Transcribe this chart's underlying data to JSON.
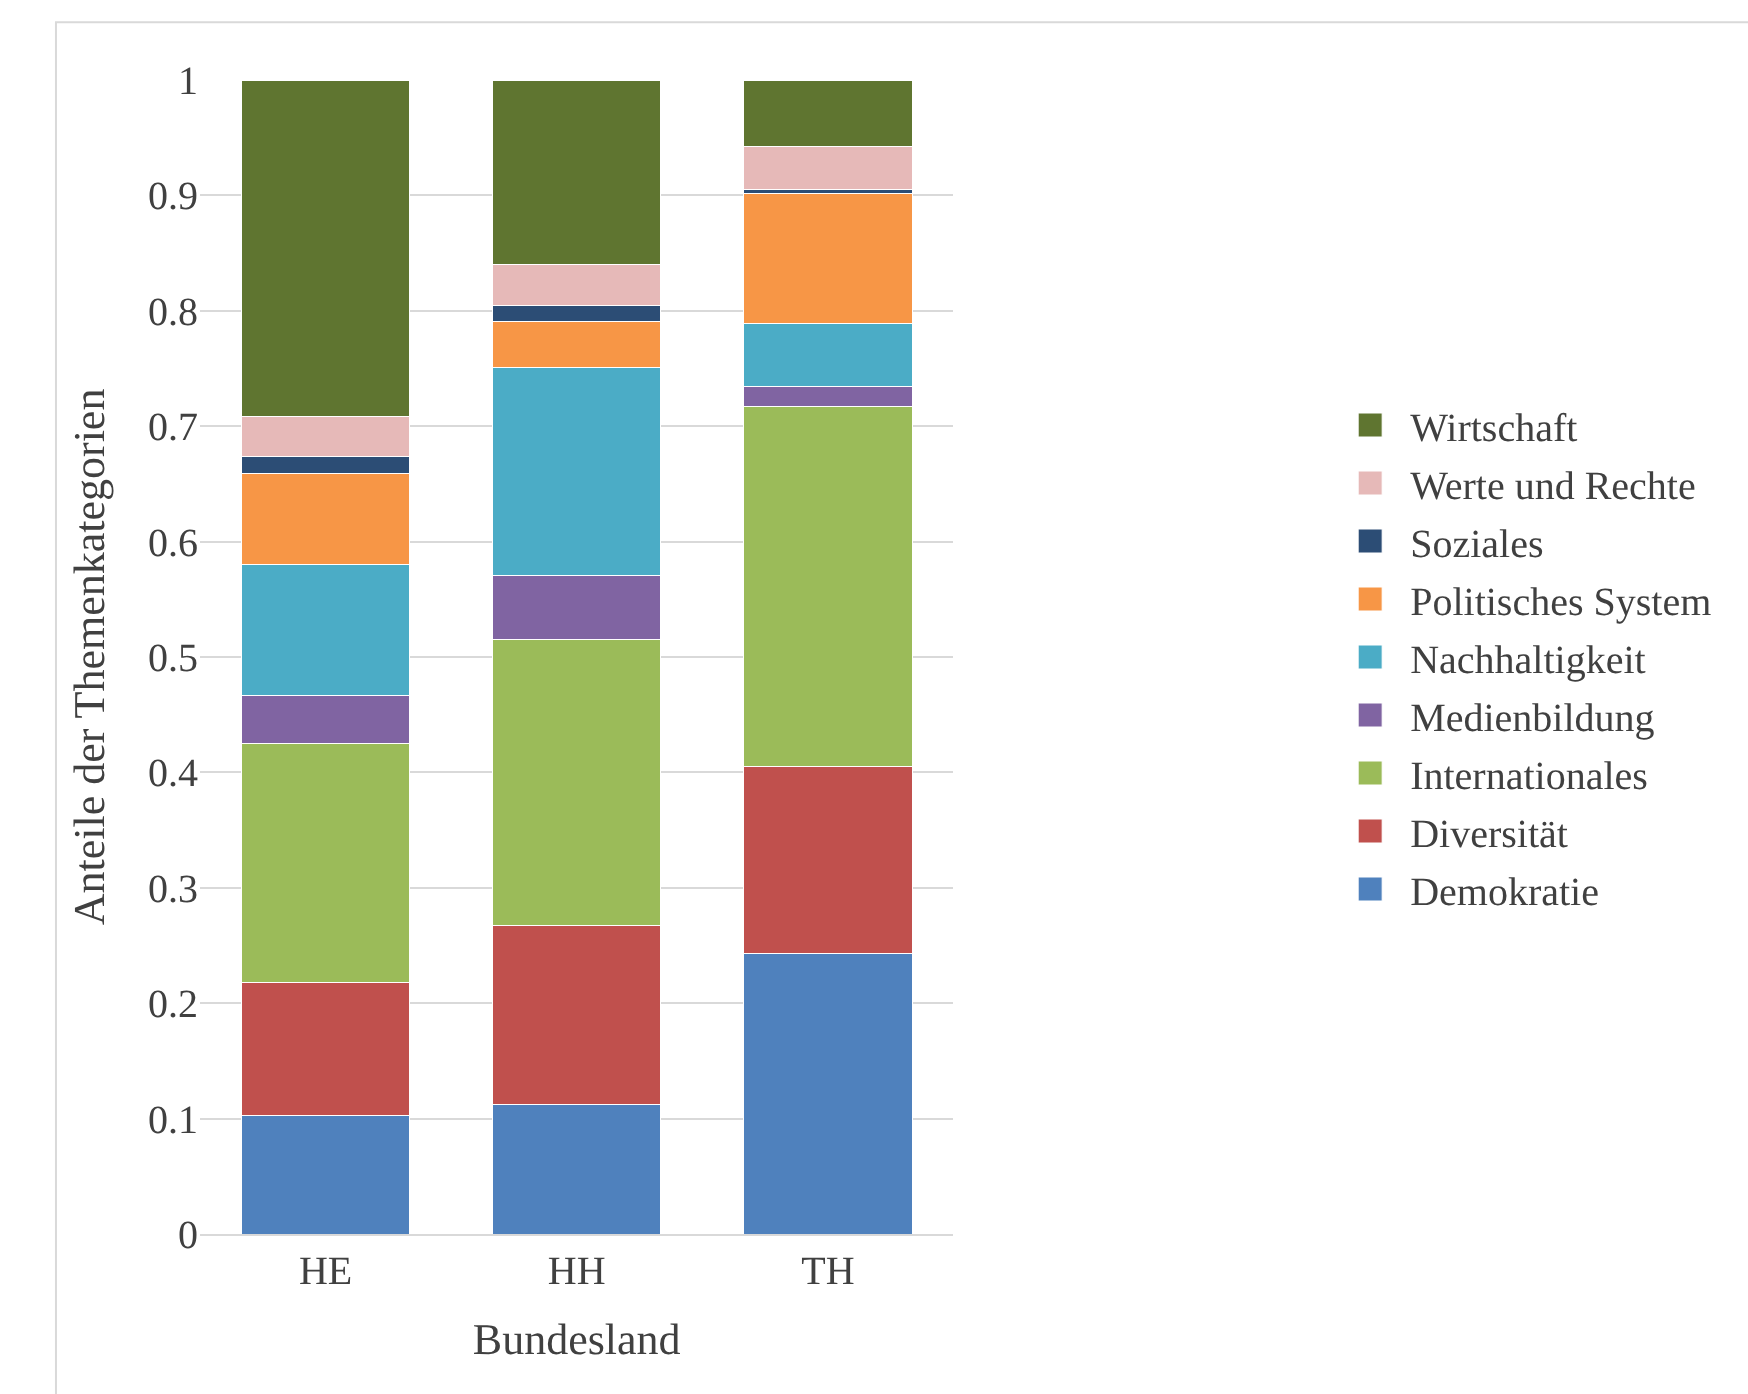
{
  "chart_data": {
    "type": "bar",
    "stacked": true,
    "xlabel": "Bundesland",
    "ylabel": "Anteile der Themenkategorien",
    "categories": [
      "HE",
      "HH",
      "TH"
    ],
    "series": [
      {
        "name": "Demokratie",
        "color": "#4f81bd",
        "values": [
          0.103,
          0.112,
          0.243
        ]
      },
      {
        "name": "Diversität",
        "color": "#c0504d",
        "values": [
          0.115,
          0.155,
          0.162
        ]
      },
      {
        "name": "Internationales",
        "color": "#9bbb59",
        "values": [
          0.207,
          0.248,
          0.312
        ]
      },
      {
        "name": "Medienbildung",
        "color": "#8064a2",
        "values": [
          0.042,
          0.056,
          0.017
        ]
      },
      {
        "name": "Nachhaltigkeit",
        "color": "#4bacc6",
        "values": [
          0.113,
          0.18,
          0.055
        ]
      },
      {
        "name": "Politisches System",
        "color": "#f79646",
        "values": [
          0.079,
          0.04,
          0.113
        ]
      },
      {
        "name": "Soziales",
        "color": "#2c4d75",
        "values": [
          0.015,
          0.014,
          0.003
        ]
      },
      {
        "name": "Werte und Rechte",
        "color": "#e6b9b8",
        "values": [
          0.034,
          0.035,
          0.037
        ]
      },
      {
        "name": "Wirtschaft",
        "color": "#5f7530",
        "values": [
          0.292,
          0.16,
          0.058
        ]
      }
    ],
    "ylim": [
      0,
      1
    ],
    "yticks": [
      0,
      0.1,
      0.2,
      0.3,
      0.4,
      0.5,
      0.6,
      0.7,
      0.8,
      0.9,
      1
    ],
    "grid": "y",
    "legend": "right"
  }
}
